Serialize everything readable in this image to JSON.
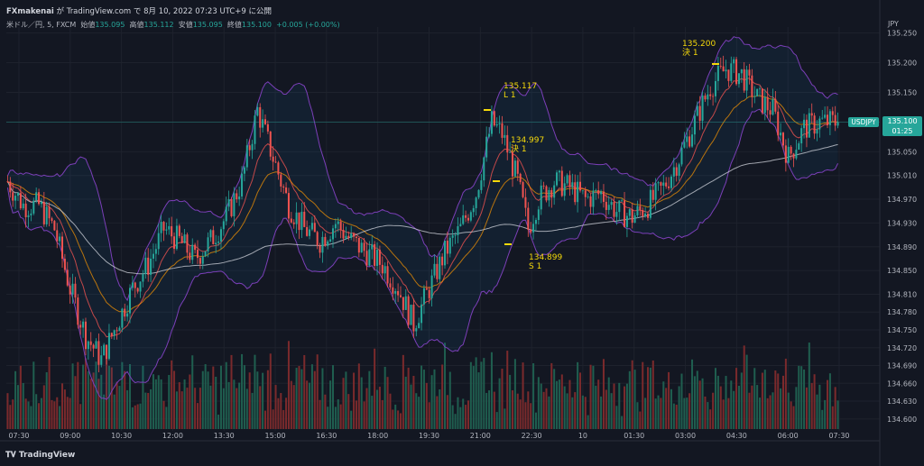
{
  "header": {
    "publisher": "FXmakenai",
    "published_text": "が TradingView.com で 8月 10, 2022 07:23 UTC+9 に公開"
  },
  "symbol_line": {
    "name": "米ドル／円, 5, FXCM",
    "open_label": "始値",
    "open": "135.095",
    "high_label": "高値",
    "high": "135.112",
    "low_label": "安値",
    "low": "135.095",
    "close_label": "終値",
    "close": "135.100",
    "change": "+0.005 (+0.00%)"
  },
  "currency": "JPY",
  "price_tag": {
    "symbol": "USDJPY",
    "price": "135.100",
    "countdown": "01:25"
  },
  "footer": {
    "brand": "TradingView"
  },
  "colors": {
    "background": "#131722",
    "up": "#26a69a",
    "down": "#ef5350",
    "band_edge": "#7b3fb8",
    "ema_fast": "#ef5350",
    "ema_mid": "#ff9800",
    "sma_long": "#d1d4dc",
    "annotation": "#f5d90a"
  },
  "chart_data": {
    "type": "candlestick",
    "ylim": [
      134.58,
      135.26
    ],
    "y_ticks": [
      "135.250",
      "135.200",
      "135.150",
      "135.100",
      "135.050",
      "135.010",
      "134.970",
      "134.930",
      "134.890",
      "134.850",
      "134.810",
      "134.780",
      "134.750",
      "134.720",
      "134.690",
      "134.660",
      "134.630",
      "134.600"
    ],
    "x_ticks": [
      "07:30",
      "09:00",
      "10:30",
      "12:00",
      "13:30",
      "15:00",
      "16:30",
      "18:00",
      "19:30",
      "21:00",
      "22:30",
      "10",
      "01:30",
      "03:00",
      "04:30",
      "06:00",
      "07:30"
    ],
    "close_path": [
      [
        0,
        135.0
      ],
      [
        6,
        134.96
      ],
      [
        12,
        134.96
      ],
      [
        18,
        134.92
      ],
      [
        24,
        134.82
      ],
      [
        30,
        134.74
      ],
      [
        36,
        134.7
      ],
      [
        42,
        134.76
      ],
      [
        48,
        134.82
      ],
      [
        54,
        134.86
      ],
      [
        60,
        134.92
      ],
      [
        66,
        134.9
      ],
      [
        72,
        134.87
      ],
      [
        78,
        134.9
      ],
      [
        84,
        134.94
      ],
      [
        90,
        135.0
      ],
      [
        96,
        135.12
      ],
      [
        102,
        135.04
      ],
      [
        108,
        134.96
      ],
      [
        114,
        134.92
      ],
      [
        120,
        134.9
      ],
      [
        126,
        134.93
      ],
      [
        132,
        134.9
      ],
      [
        138,
        134.88
      ],
      [
        144,
        134.86
      ],
      [
        150,
        134.82
      ],
      [
        156,
        134.76
      ],
      [
        162,
        134.82
      ],
      [
        168,
        134.88
      ],
      [
        174,
        134.92
      ],
      [
        180,
        134.98
      ],
      [
        186,
        135.1
      ],
      [
        190,
        135.08
      ],
      [
        196,
        135.0
      ],
      [
        200,
        134.92
      ],
      [
        204,
        134.97
      ],
      [
        210,
        135.0
      ],
      [
        216,
        134.99
      ],
      [
        222,
        134.97
      ],
      [
        228,
        134.98
      ],
      [
        234,
        134.95
      ],
      [
        240,
        134.94
      ],
      [
        246,
        134.96
      ],
      [
        252,
        134.99
      ],
      [
        258,
        135.04
      ],
      [
        264,
        135.1
      ],
      [
        270,
        135.16
      ],
      [
        276,
        135.19
      ],
      [
        282,
        135.18
      ],
      [
        288,
        135.14
      ],
      [
        294,
        135.12
      ],
      [
        300,
        135.04
      ],
      [
        306,
        135.09
      ],
      [
        312,
        135.1
      ],
      [
        318,
        135.1
      ]
    ],
    "last_close": 135.1,
    "annotations": [
      {
        "price": "135.117",
        "label": "L 1"
      },
      {
        "price": "134.997",
        "label": "決 1"
      },
      {
        "price": "134.899",
        "label": "S 1"
      },
      {
        "price": "135.200",
        "label": "決 1"
      }
    ]
  }
}
